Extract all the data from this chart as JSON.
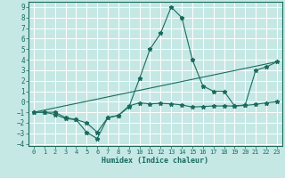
{
  "xlabel": "Humidex (Indice chaleur)",
  "xlim": [
    -0.5,
    23.5
  ],
  "ylim": [
    -4.2,
    9.5
  ],
  "xticks": [
    0,
    1,
    2,
    3,
    4,
    5,
    6,
    7,
    8,
    9,
    10,
    11,
    12,
    13,
    14,
    15,
    16,
    17,
    18,
    19,
    20,
    21,
    22,
    23
  ],
  "yticks": [
    -4,
    -3,
    -2,
    -1,
    0,
    1,
    2,
    3,
    4,
    5,
    6,
    7,
    8,
    9
  ],
  "background_color": "#c5e8e5",
  "grid_color": "#ffffff",
  "line_color": "#1a6b5e",
  "figsize": [
    3.2,
    2.0
  ],
  "dpi": 100,
  "line1_x": [
    0,
    1,
    2,
    3,
    4,
    5,
    6,
    7,
    8,
    9,
    10,
    11,
    12,
    13,
    14,
    15,
    16,
    17,
    18,
    19,
    20,
    21,
    22,
    23
  ],
  "line1_y": [
    -1.0,
    -1.0,
    -1.2,
    -1.6,
    -1.7,
    -2.9,
    -3.5,
    -1.5,
    -1.3,
    -0.4,
    -0.1,
    -0.2,
    -0.15,
    -0.2,
    -0.3,
    -0.5,
    -0.45,
    -0.4,
    -0.4,
    -0.4,
    -0.35,
    -0.25,
    -0.1,
    0.0
  ],
  "line2_x": [
    0,
    1,
    2,
    3,
    4,
    5,
    6,
    7,
    8,
    9,
    10,
    11,
    12,
    13,
    14,
    15,
    16,
    17,
    18,
    19,
    20,
    21,
    22,
    23
  ],
  "line2_y": [
    -1.0,
    -1.0,
    -1.0,
    -1.5,
    -1.7,
    -2.0,
    -2.9,
    -1.5,
    -1.3,
    -0.5,
    2.2,
    5.0,
    6.5,
    9.0,
    8.0,
    4.0,
    1.5,
    1.0,
    1.0,
    -0.4,
    -0.3,
    3.0,
    3.3,
    3.8
  ],
  "line3_x": [
    0,
    23
  ],
  "line3_y": [
    -1.0,
    3.8
  ]
}
